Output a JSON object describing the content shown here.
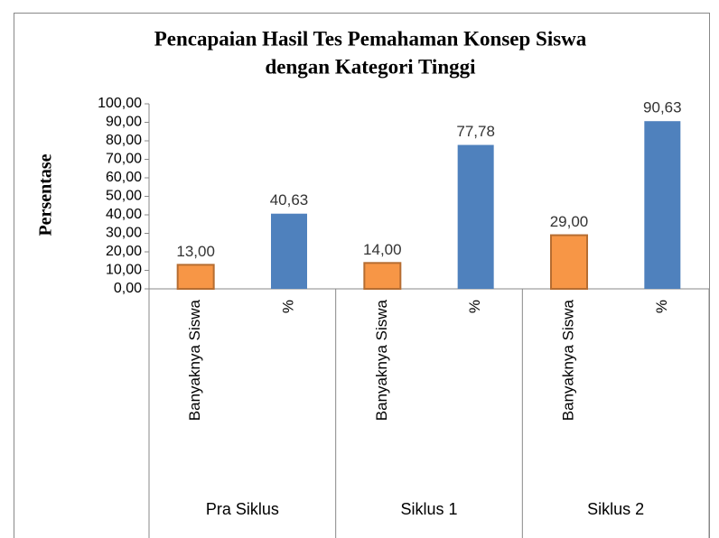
{
  "chart_data": {
    "type": "bar",
    "title": [
      "Pencapaian Hasil Tes Pemahaman Konsep Siswa",
      "dengan Kategori Tinggi"
    ],
    "y_label": "Persentase",
    "categories": [
      "Banyaknya Siswa",
      "%",
      "Banyaknya Siswa",
      "%",
      "Banyaknya Siswa",
      "%"
    ],
    "groups": [
      "Pra Siklus",
      "Siklus 1",
      "Siklus 2"
    ],
    "values": [
      13,
      40.63,
      14,
      77.78,
      29,
      90.63
    ],
    "value_labels": [
      "13,00",
      "40,63",
      "14,00",
      "77,78",
      "29,00",
      "90,63"
    ],
    "colors": [
      "#f79646",
      "#4f81bd",
      "#f79646",
      "#4f81bd",
      "#f79646",
      "#4f81bd"
    ],
    "ylim": [
      0,
      100
    ],
    "yticks": [
      {
        "value": 0,
        "label": "0,00"
      },
      {
        "value": 10,
        "label": "10,00"
      },
      {
        "value": 20,
        "label": "20,00"
      },
      {
        "value": 30,
        "label": "30,00"
      },
      {
        "value": 40,
        "label": "40,00"
      },
      {
        "value": 50,
        "label": "50,00"
      },
      {
        "value": 60,
        "label": "60,00"
      },
      {
        "value": 70,
        "label": "70,00"
      },
      {
        "value": 80,
        "label": "80,00"
      },
      {
        "value": 90,
        "label": "90,00"
      },
      {
        "value": 100,
        "label": "100,00"
      }
    ],
    "grid": false
  }
}
